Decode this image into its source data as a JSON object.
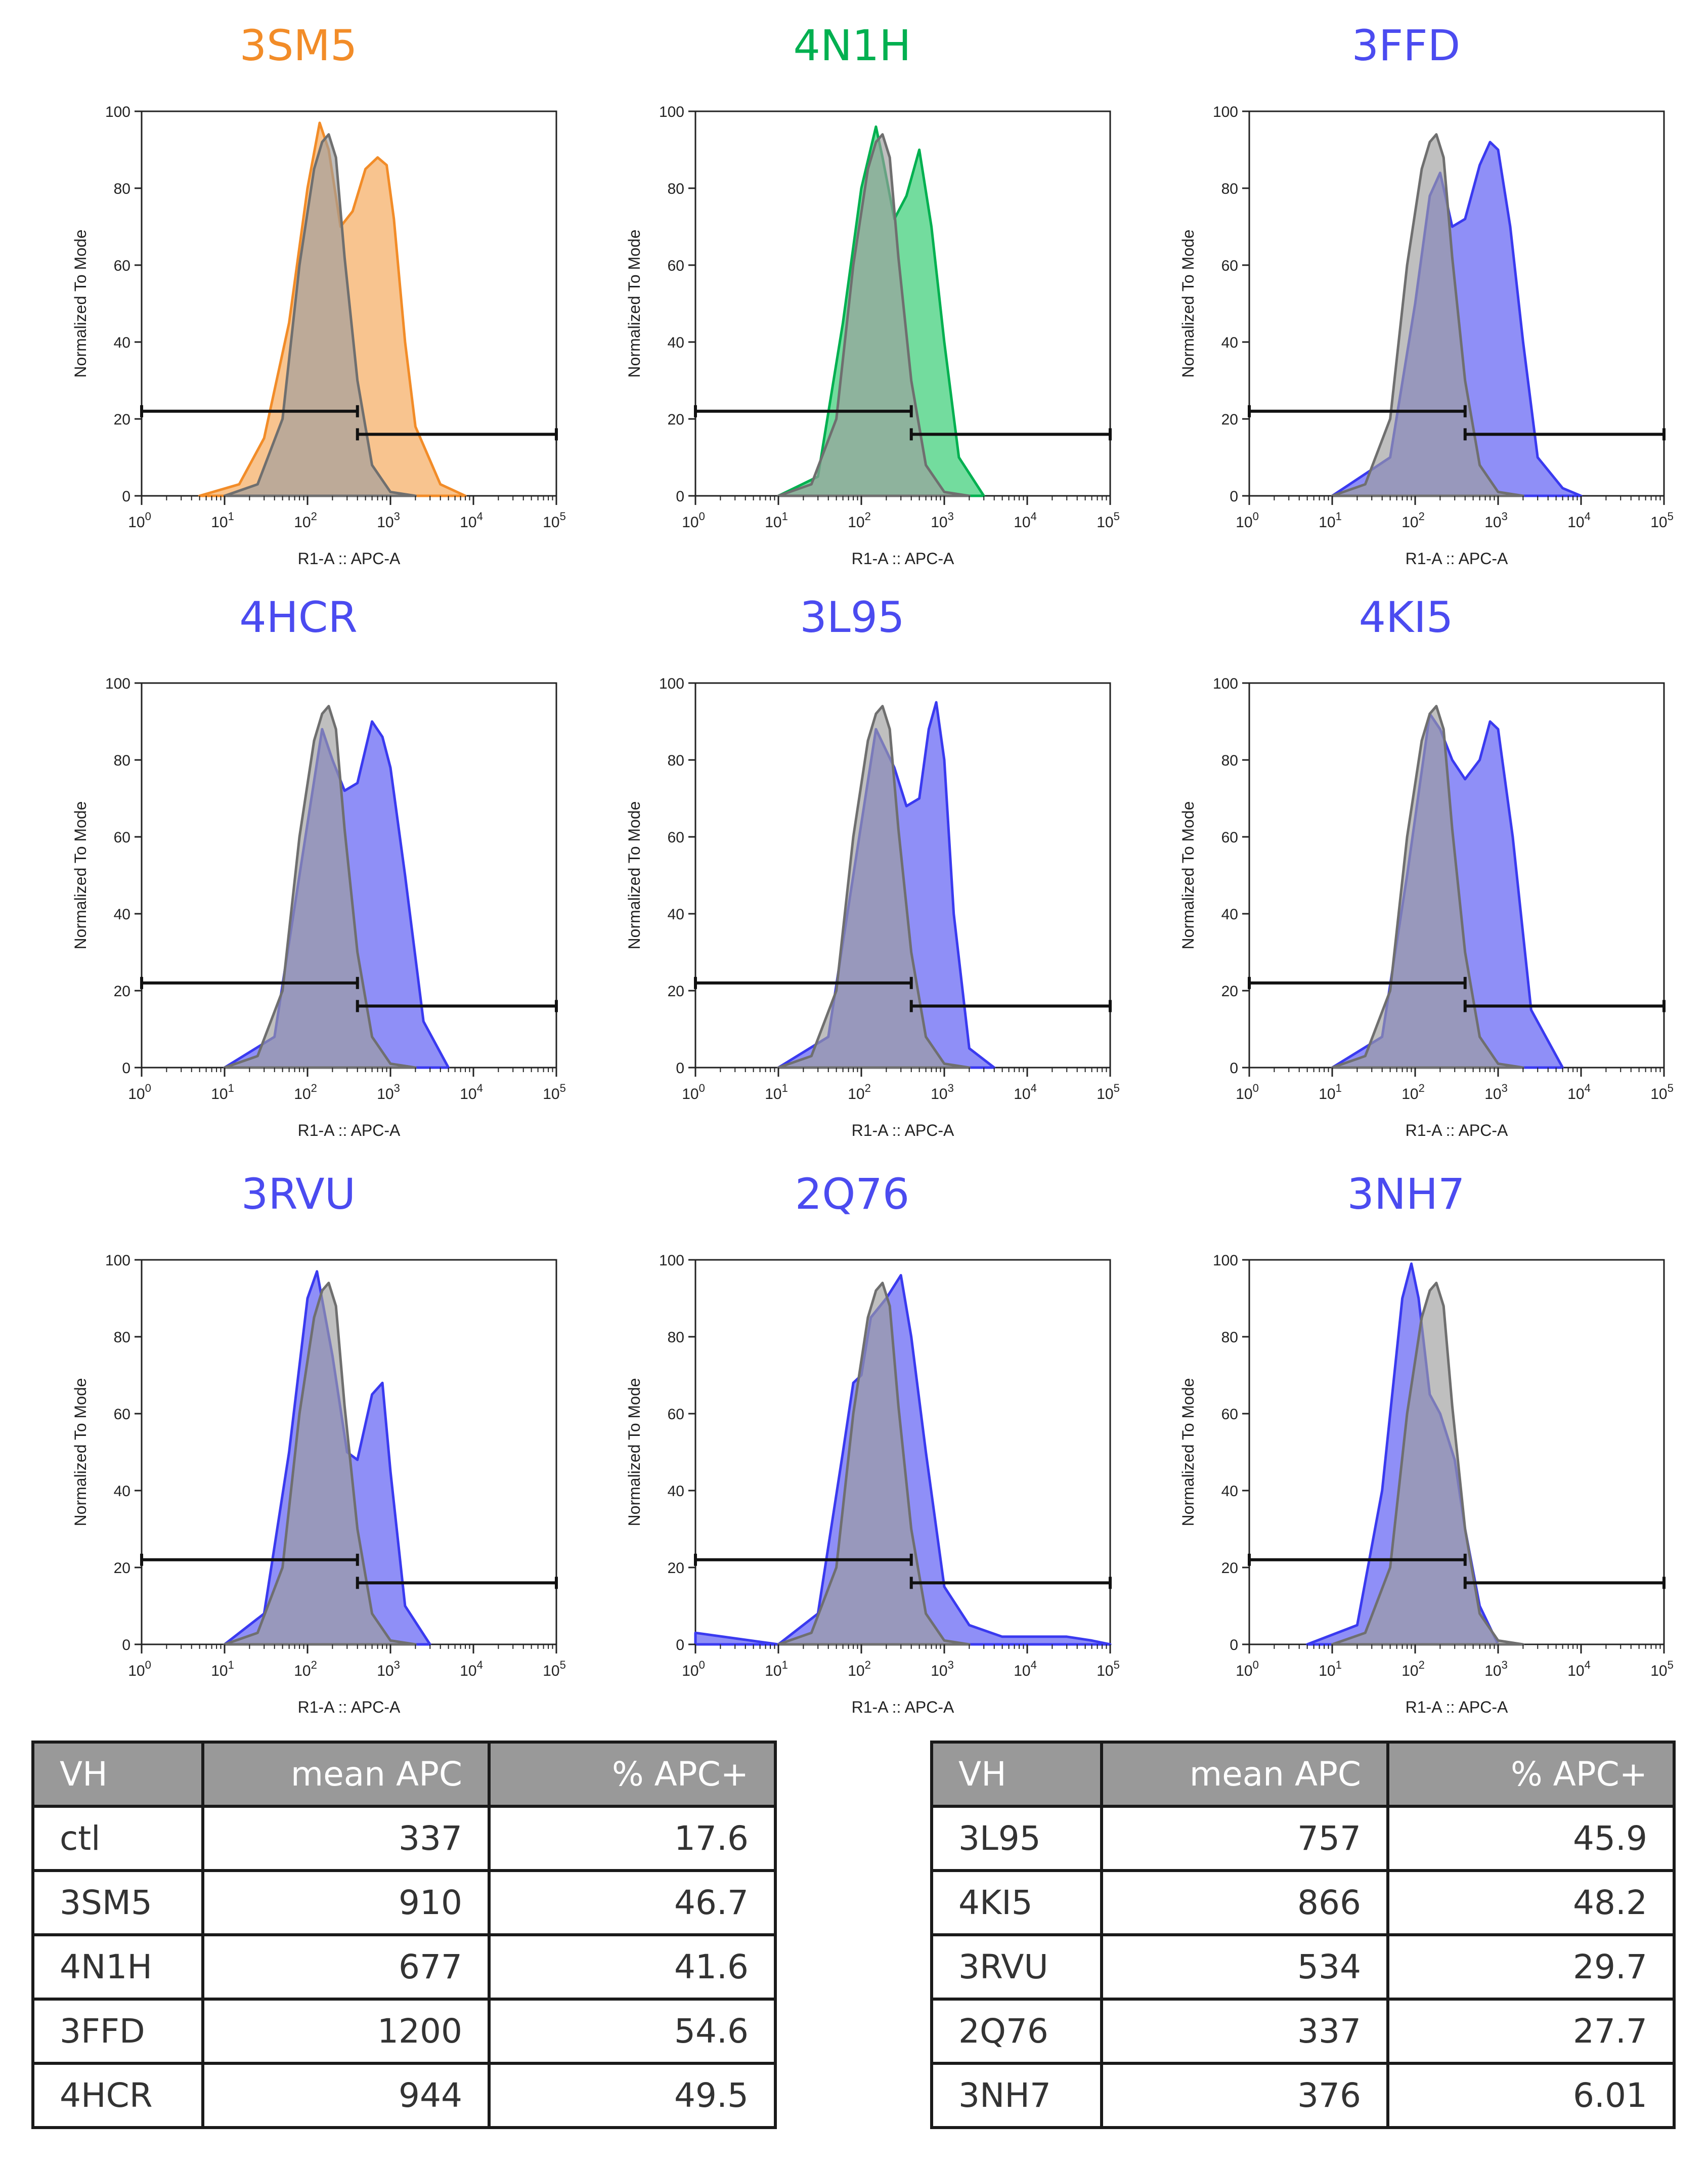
{
  "colors": {
    "orange_line": "#f28c28",
    "orange_fill": "#f6b06a",
    "green_line": "#00b050",
    "green_fill": "#44d07e",
    "blue_line": "#3a3af0",
    "blue_fill": "#6a6af4",
    "ctl_line": "#6f6f6f",
    "ctl_fill": "#9c9c9c",
    "title_orange": "#f28c28",
    "title_green": "#00b050",
    "title_blue": "#4b4bf0"
  },
  "common": {
    "xlabel": "R1-A :: APC-A",
    "ylabel": "Normalized To Mode",
    "y_ticks": [
      "0",
      "20",
      "40",
      "60",
      "80",
      "100"
    ],
    "x_exponents": [
      "0",
      "1",
      "2",
      "3",
      "4",
      "5"
    ]
  },
  "chart_data": [
    {
      "type": "area",
      "title": "3SM5",
      "xscale": "log",
      "xlim": [
        1,
        100000
      ],
      "ylim": [
        0,
        100
      ],
      "xlabel": "R1-A :: APC-A",
      "ylabel": "Normalized To Mode",
      "color": "orange",
      "series": [
        {
          "role": "ctl",
          "x": [
            10,
            25,
            50,
            80,
            120,
            150,
            180,
            220,
            280,
            400,
            600,
            1000,
            2000
          ],
          "y": [
            0,
            3,
            20,
            60,
            85,
            92,
            94,
            88,
            62,
            30,
            8,
            1,
            0
          ]
        },
        {
          "role": "sample",
          "x": [
            5,
            15,
            30,
            60,
            100,
            140,
            180,
            250,
            350,
            500,
            700,
            900,
            1100,
            1500,
            2000,
            4000,
            8000
          ],
          "y": [
            0,
            3,
            15,
            45,
            80,
            97,
            90,
            70,
            74,
            85,
            88,
            86,
            72,
            40,
            18,
            3,
            0
          ]
        }
      ],
      "gates": [
        {
          "x": [
            1,
            400
          ],
          "y": 22
        },
        {
          "x": [
            400,
            100000
          ],
          "y": 16
        }
      ]
    },
    {
      "type": "area",
      "title": "4N1H",
      "xscale": "log",
      "xlim": [
        1,
        100000
      ],
      "ylim": [
        0,
        100
      ],
      "xlabel": "R1-A :: APC-A",
      "ylabel": "Normalized To Mode",
      "color": "green",
      "series": [
        {
          "role": "ctl",
          "x": [
            10,
            25,
            50,
            80,
            120,
            150,
            180,
            220,
            280,
            400,
            600,
            1000,
            2000
          ],
          "y": [
            0,
            3,
            20,
            60,
            85,
            92,
            94,
            88,
            62,
            30,
            8,
            1,
            0
          ]
        },
        {
          "role": "sample",
          "x": [
            10,
            30,
            60,
            100,
            150,
            180,
            250,
            350,
            500,
            700,
            1000,
            1500,
            3000
          ],
          "y": [
            0,
            5,
            45,
            80,
            96,
            88,
            72,
            78,
            90,
            70,
            40,
            10,
            0
          ]
        }
      ],
      "gates": [
        {
          "x": [
            1,
            400
          ],
          "y": 22
        },
        {
          "x": [
            400,
            100000
          ],
          "y": 16
        }
      ]
    },
    {
      "type": "area",
      "title": "3FFD",
      "xscale": "log",
      "xlim": [
        1,
        100000
      ],
      "ylim": [
        0,
        100
      ],
      "xlabel": "R1-A :: APC-A",
      "ylabel": "Normalized To Mode",
      "color": "blue",
      "series": [
        {
          "role": "ctl",
          "x": [
            10,
            25,
            50,
            80,
            120,
            150,
            180,
            220,
            280,
            400,
            600,
            1000,
            2000
          ],
          "y": [
            0,
            3,
            20,
            60,
            85,
            92,
            94,
            88,
            62,
            30,
            8,
            1,
            0
          ]
        },
        {
          "role": "sample",
          "x": [
            10,
            50,
            100,
            150,
            200,
            280,
            400,
            600,
            800,
            1000,
            1400,
            2000,
            3000,
            6000,
            10000
          ],
          "y": [
            0,
            10,
            50,
            78,
            84,
            70,
            72,
            86,
            92,
            90,
            70,
            40,
            10,
            2,
            0
          ]
        }
      ],
      "gates": [
        {
          "x": [
            1,
            400
          ],
          "y": 22
        },
        {
          "x": [
            400,
            100000
          ],
          "y": 16
        }
      ]
    },
    {
      "type": "area",
      "title": "4HCR",
      "xscale": "log",
      "xlim": [
        1,
        100000
      ],
      "ylim": [
        0,
        100
      ],
      "xlabel": "R1-A :: APC-A",
      "ylabel": "Normalized To Mode",
      "color": "blue",
      "series": [
        {
          "role": "ctl",
          "x": [
            10,
            25,
            50,
            80,
            120,
            150,
            180,
            220,
            280,
            400,
            600,
            1000,
            2000
          ],
          "y": [
            0,
            3,
            20,
            60,
            85,
            92,
            94,
            88,
            62,
            30,
            8,
            1,
            0
          ]
        },
        {
          "role": "sample",
          "x": [
            10,
            40,
            80,
            150,
            200,
            280,
            400,
            600,
            800,
            1000,
            1500,
            2500,
            5000
          ],
          "y": [
            0,
            8,
            50,
            88,
            80,
            72,
            74,
            90,
            86,
            78,
            50,
            12,
            0
          ]
        }
      ],
      "gates": [
        {
          "x": [
            1,
            400
          ],
          "y": 22
        },
        {
          "x": [
            400,
            100000
          ],
          "y": 16
        }
      ]
    },
    {
      "type": "area",
      "title": "3L95",
      "xscale": "log",
      "xlim": [
        1,
        100000
      ],
      "ylim": [
        0,
        100
      ],
      "xlabel": "R1-A :: APC-A",
      "ylabel": "Normalized To Mode",
      "color": "blue",
      "series": [
        {
          "role": "ctl",
          "x": [
            10,
            25,
            50,
            80,
            120,
            150,
            180,
            220,
            280,
            400,
            600,
            1000,
            2000
          ],
          "y": [
            0,
            3,
            20,
            60,
            85,
            92,
            94,
            88,
            62,
            30,
            8,
            1,
            0
          ]
        },
        {
          "role": "sample",
          "x": [
            10,
            40,
            80,
            150,
            250,
            350,
            500,
            650,
            800,
            1000,
            1300,
            2000,
            4000
          ],
          "y": [
            0,
            8,
            50,
            88,
            78,
            68,
            70,
            88,
            95,
            80,
            40,
            5,
            0
          ]
        }
      ],
      "gates": [
        {
          "x": [
            1,
            400
          ],
          "y": 22
        },
        {
          "x": [
            400,
            100000
          ],
          "y": 16
        }
      ]
    },
    {
      "type": "area",
      "title": "4KI5",
      "xscale": "log",
      "xlim": [
        1,
        100000
      ],
      "ylim": [
        0,
        100
      ],
      "xlabel": "R1-A :: APC-A",
      "ylabel": "Normalized To Mode",
      "color": "blue",
      "series": [
        {
          "role": "ctl",
          "x": [
            10,
            25,
            50,
            80,
            120,
            150,
            180,
            220,
            280,
            400,
            600,
            1000,
            2000
          ],
          "y": [
            0,
            3,
            20,
            60,
            85,
            92,
            94,
            88,
            62,
            30,
            8,
            1,
            0
          ]
        },
        {
          "role": "sample",
          "x": [
            10,
            40,
            80,
            150,
            200,
            280,
            400,
            600,
            800,
            1000,
            1500,
            2500,
            6000
          ],
          "y": [
            0,
            8,
            50,
            92,
            88,
            80,
            75,
            80,
            90,
            88,
            60,
            15,
            0
          ]
        }
      ],
      "gates": [
        {
          "x": [
            1,
            400
          ],
          "y": 22
        },
        {
          "x": [
            400,
            100000
          ],
          "y": 16
        }
      ]
    },
    {
      "type": "area",
      "title": "3RVU",
      "xscale": "log",
      "xlim": [
        1,
        100000
      ],
      "ylim": [
        0,
        100
      ],
      "xlabel": "R1-A :: APC-A",
      "ylabel": "Normalized To Mode",
      "color": "blue",
      "series": [
        {
          "role": "ctl",
          "x": [
            10,
            25,
            50,
            80,
            120,
            150,
            180,
            220,
            280,
            400,
            600,
            1000,
            2000
          ],
          "y": [
            0,
            3,
            20,
            60,
            85,
            92,
            94,
            88,
            62,
            30,
            8,
            1,
            0
          ]
        },
        {
          "role": "sample",
          "x": [
            10,
            30,
            60,
            100,
            130,
            200,
            300,
            400,
            600,
            800,
            1000,
            1500,
            3000
          ],
          "y": [
            0,
            8,
            50,
            90,
            97,
            75,
            50,
            48,
            65,
            68,
            45,
            10,
            0
          ]
        }
      ],
      "gates": [
        {
          "x": [
            1,
            400
          ],
          "y": 22
        },
        {
          "x": [
            400,
            100000
          ],
          "y": 16
        }
      ]
    },
    {
      "type": "area",
      "title": "2Q76",
      "xscale": "log",
      "xlim": [
        1,
        100000
      ],
      "ylim": [
        0,
        100
      ],
      "xlabel": "R1-A :: APC-A",
      "ylabel": "Normalized To Mode",
      "color": "blue",
      "series": [
        {
          "role": "ctl",
          "x": [
            10,
            25,
            50,
            80,
            120,
            150,
            180,
            220,
            280,
            400,
            600,
            1000,
            2000
          ],
          "y": [
            0,
            3,
            20,
            60,
            85,
            92,
            94,
            88,
            62,
            30,
            8,
            1,
            0
          ]
        },
        {
          "role": "sample",
          "x": [
            1,
            10,
            30,
            60,
            80,
            100,
            130,
            200,
            300,
            400,
            600,
            1000,
            2000,
            5000,
            10000,
            30000,
            60000,
            100000
          ],
          "y": [
            3,
            0,
            8,
            50,
            68,
            70,
            85,
            90,
            96,
            80,
            50,
            15,
            5,
            2,
            2,
            2,
            1,
            0
          ]
        }
      ],
      "gates": [
        {
          "x": [
            1,
            400
          ],
          "y": 22
        },
        {
          "x": [
            400,
            100000
          ],
          "y": 16
        }
      ]
    },
    {
      "type": "area",
      "title": "3NH7",
      "xscale": "log",
      "xlim": [
        1,
        100000
      ],
      "ylim": [
        0,
        100
      ],
      "xlabel": "R1-A :: APC-A",
      "ylabel": "Normalized To Mode",
      "color": "blue",
      "series": [
        {
          "role": "ctl",
          "x": [
            10,
            25,
            50,
            80,
            120,
            150,
            180,
            220,
            280,
            400,
            600,
            1000,
            2000
          ],
          "y": [
            0,
            3,
            20,
            60,
            85,
            92,
            94,
            88,
            62,
            30,
            8,
            1,
            0
          ]
        },
        {
          "role": "sample",
          "x": [
            5,
            20,
            40,
            70,
            90,
            110,
            150,
            200,
            300,
            400,
            600,
            1000
          ],
          "y": [
            0,
            5,
            40,
            90,
            99,
            90,
            65,
            60,
            48,
            30,
            10,
            0
          ]
        }
      ],
      "gates": [
        {
          "x": [
            1,
            400
          ],
          "y": 22
        },
        {
          "x": [
            400,
            100000
          ],
          "y": 16
        }
      ]
    },
    {
      "type": "table",
      "columns": [
        "VH",
        "mean APC",
        "% APC+"
      ],
      "rows": [
        [
          "ctl",
          "337",
          "17.6"
        ],
        [
          "3SM5",
          "910",
          "46.7"
        ],
        [
          "4N1H",
          "677",
          "41.6"
        ],
        [
          "3FFD",
          "1200",
          "54.6"
        ],
        [
          "4HCR",
          "944",
          "49.5"
        ]
      ]
    },
    {
      "type": "table",
      "columns": [
        "VH",
        "mean APC",
        "% APC+"
      ],
      "rows": [
        [
          "3L95",
          "757",
          "45.9"
        ],
        [
          "4KI5",
          "866",
          "48.2"
        ],
        [
          "3RVU",
          "534",
          "29.7"
        ],
        [
          "2Q76",
          "337",
          "27.7"
        ],
        [
          "3NH7",
          "376",
          "6.01"
        ]
      ]
    }
  ]
}
